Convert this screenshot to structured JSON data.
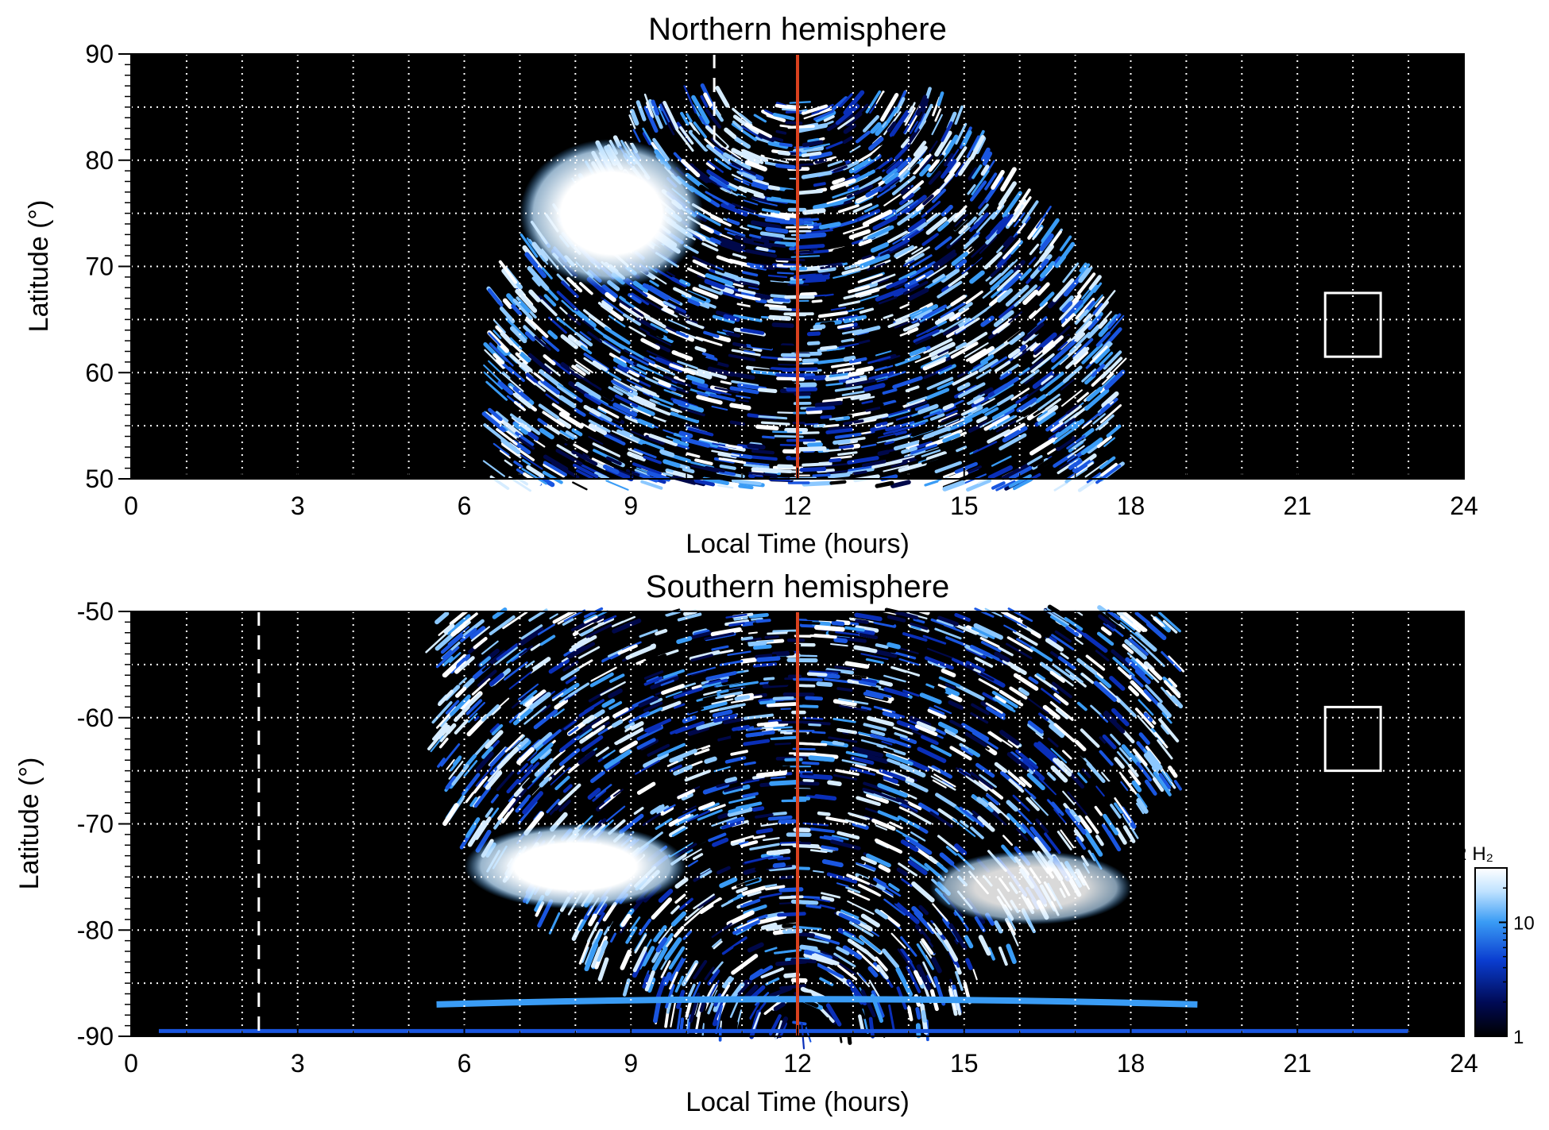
{
  "chart_data": [
    {
      "type": "heatmap",
      "title": "Northern hemisphere",
      "xlabel": "Local Time (hours)",
      "ylabel": "Latitude (°)",
      "xlim": [
        0,
        24
      ],
      "ylim": [
        50,
        90
      ],
      "xticks": [
        0,
        3,
        6,
        9,
        12,
        15,
        18,
        21,
        24
      ],
      "yticks": [
        50,
        60,
        70,
        80,
        90
      ],
      "grid": true,
      "grid_x": [
        1,
        2,
        3,
        4,
        5,
        6,
        7,
        8,
        9,
        10,
        11,
        12,
        13,
        14,
        15,
        16,
        17,
        18,
        19,
        20,
        21,
        22,
        23
      ],
      "grid_y": [
        55,
        60,
        65,
        70,
        75,
        80,
        85
      ],
      "coverage_lt_range": [
        6.5,
        18.0
      ],
      "bright_region": {
        "lt_range": [
          7.0,
          10.3
        ],
        "lat_range": [
          68,
          82
        ],
        "level": "white"
      },
      "red_line_lt": 12.0,
      "red_line_color": "#d9411e",
      "dashed_line": {
        "lt": 10.5,
        "lat_range": [
          81,
          90
        ]
      },
      "box": {
        "lt_range": [
          21.5,
          22.5
        ],
        "lat_range": [
          61.5,
          67.5
        ]
      }
    },
    {
      "type": "heatmap",
      "title": "Southern hemisphere",
      "xlabel": "Local Time (hours)",
      "ylabel": "Latitude (°)",
      "xlim": [
        0,
        24
      ],
      "ylim": [
        -90,
        -50
      ],
      "xticks": [
        0,
        3,
        6,
        9,
        12,
        15,
        18,
        21,
        24
      ],
      "yticks": [
        -90,
        -80,
        -70,
        -60,
        -50
      ],
      "grid": true,
      "grid_x": [
        1,
        2,
        3,
        4,
        5,
        6,
        7,
        8,
        9,
        10,
        11,
        12,
        13,
        14,
        15,
        16,
        17,
        18,
        19,
        20,
        21,
        22,
        23
      ],
      "grid_y": [
        -85,
        -80,
        -75,
        -70,
        -65,
        -60,
        -55
      ],
      "coverage_lt_range": [
        5.5,
        19.2
      ],
      "bright_region": {
        "lt_range": [
          6.0,
          10.0
        ],
        "lat_range": [
          -78,
          -70
        ],
        "level": "white"
      },
      "red_line_lt": 12.0,
      "red_line_color": "#d9411e",
      "dashed_line": {
        "lt": 2.3,
        "lat_range": [
          -90,
          -50
        ]
      },
      "box": {
        "lt_range": [
          21.5,
          22.5
        ],
        "lat_range": [
          -65,
          -59
        ]
      }
    }
  ],
  "colorbar": {
    "title": "kR H₂",
    "scale": "log",
    "range": [
      1,
      30
    ],
    "ticks": [
      {
        "value": 1,
        "label": "1"
      },
      {
        "value": 10,
        "label": "10"
      }
    ],
    "colors": [
      "#000000",
      "#000a55",
      "#0a3dd0",
      "#3a9cf5",
      "#bfe2ff",
      "#ffffff"
    ]
  }
}
